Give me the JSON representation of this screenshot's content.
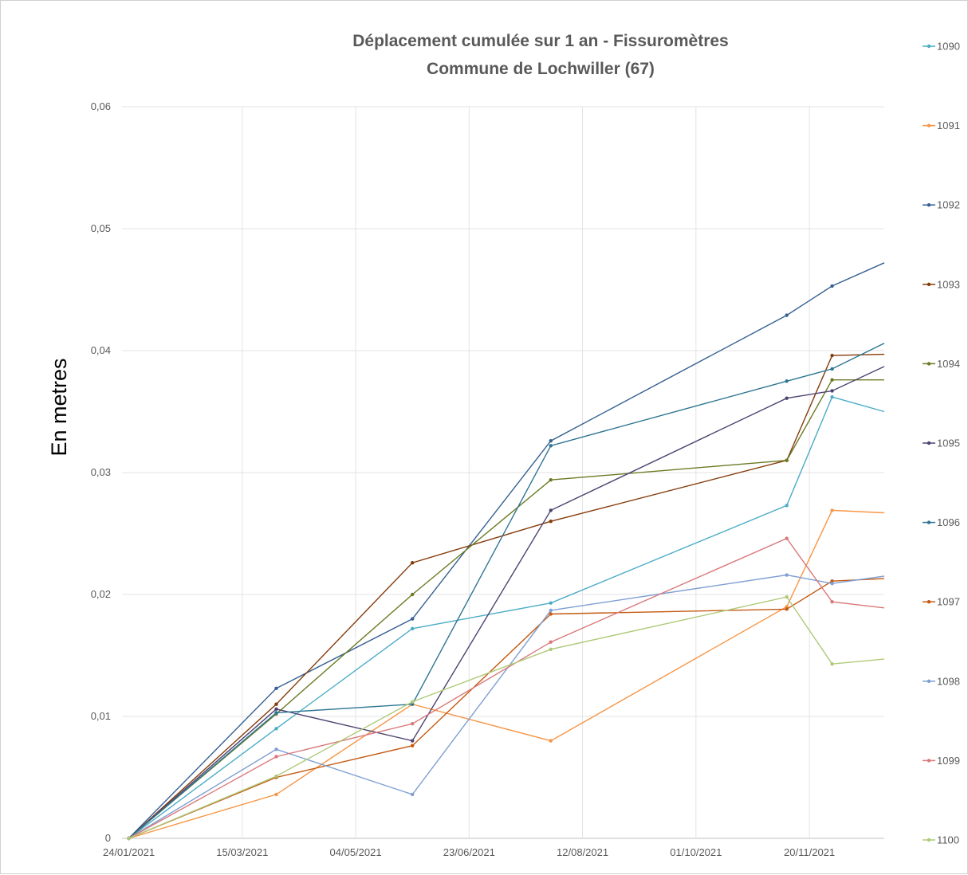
{
  "chart_data": {
    "type": "line",
    "title": "Déplacement cumulée sur 1 an - Fissuromètres",
    "subtitle": "Commune de Lochwiller (67)",
    "xlabel": "",
    "ylabel": "En metres",
    "x_tick_labels": [
      "24/01/2021",
      "15/03/2021",
      "04/05/2021",
      "23/06/2021",
      "12/08/2021",
      "01/10/2021",
      "20/11/2021"
    ],
    "xlim": [
      "2021-01-21",
      "2021-12-23"
    ],
    "y_tick_labels": [
      "0",
      "0,01",
      "0,02",
      "0,03",
      "0,04",
      "0,05",
      "0,06"
    ],
    "ylim": [
      0,
      0.06
    ],
    "grid": true,
    "legend_position": "right",
    "x": [
      "2021-01-24",
      "2021-03-30",
      "2021-05-29",
      "2021-07-29",
      "2021-11-10",
      "2021-11-30",
      "2021-12-23"
    ],
    "series": [
      {
        "name": "1090",
        "color": "#4bacc6",
        "values": [
          0,
          0.009,
          0.0172,
          0.0193,
          0.0273,
          0.0362,
          0.035
        ]
      },
      {
        "name": "1091",
        "color": "#f79646",
        "values": [
          0,
          0.0036,
          0.011,
          0.008,
          0.019,
          0.0269,
          0.0267
        ]
      },
      {
        "name": "1092",
        "color": "#366092",
        "values": [
          0,
          0.0123,
          0.018,
          0.0326,
          0.0429,
          0.0453,
          0.0472
        ]
      },
      {
        "name": "1093",
        "color": "#843c0c",
        "values": [
          0,
          0.011,
          0.0226,
          0.026,
          0.031,
          0.0396,
          0.0397
        ]
      },
      {
        "name": "1094",
        "color": "#6a7b24",
        "values": [
          0,
          0.0102,
          0.02,
          0.0294,
          0.031,
          0.0376,
          0.0376
        ]
      },
      {
        "name": "1095",
        "color": "#4e4371",
        "values": [
          0,
          0.0106,
          0.008,
          0.0269,
          0.0361,
          0.0367,
          0.0387
        ]
      },
      {
        "name": "1096",
        "color": "#2e7592",
        "values": [
          0,
          0.0103,
          0.011,
          0.0322,
          0.0375,
          0.0385,
          0.0406
        ]
      },
      {
        "name": "1097",
        "color": "#c55a11",
        "values": [
          0,
          0.005,
          0.0076,
          0.0184,
          0.0188,
          0.0211,
          0.0213
        ]
      },
      {
        "name": "1098",
        "color": "#7f9fd2",
        "values": [
          0,
          0.0073,
          0.0036,
          0.0187,
          0.0216,
          0.0209,
          0.0215
        ]
      },
      {
        "name": "1099",
        "color": "#d9797b",
        "values": [
          0,
          0.0067,
          0.0094,
          0.0161,
          0.0246,
          0.0194,
          0.0189
        ]
      },
      {
        "name": "1100",
        "color": "#aeca78",
        "values": [
          0,
          0.0051,
          0.0112,
          0.0155,
          0.0198,
          0.0143,
          0.0147
        ]
      }
    ]
  }
}
